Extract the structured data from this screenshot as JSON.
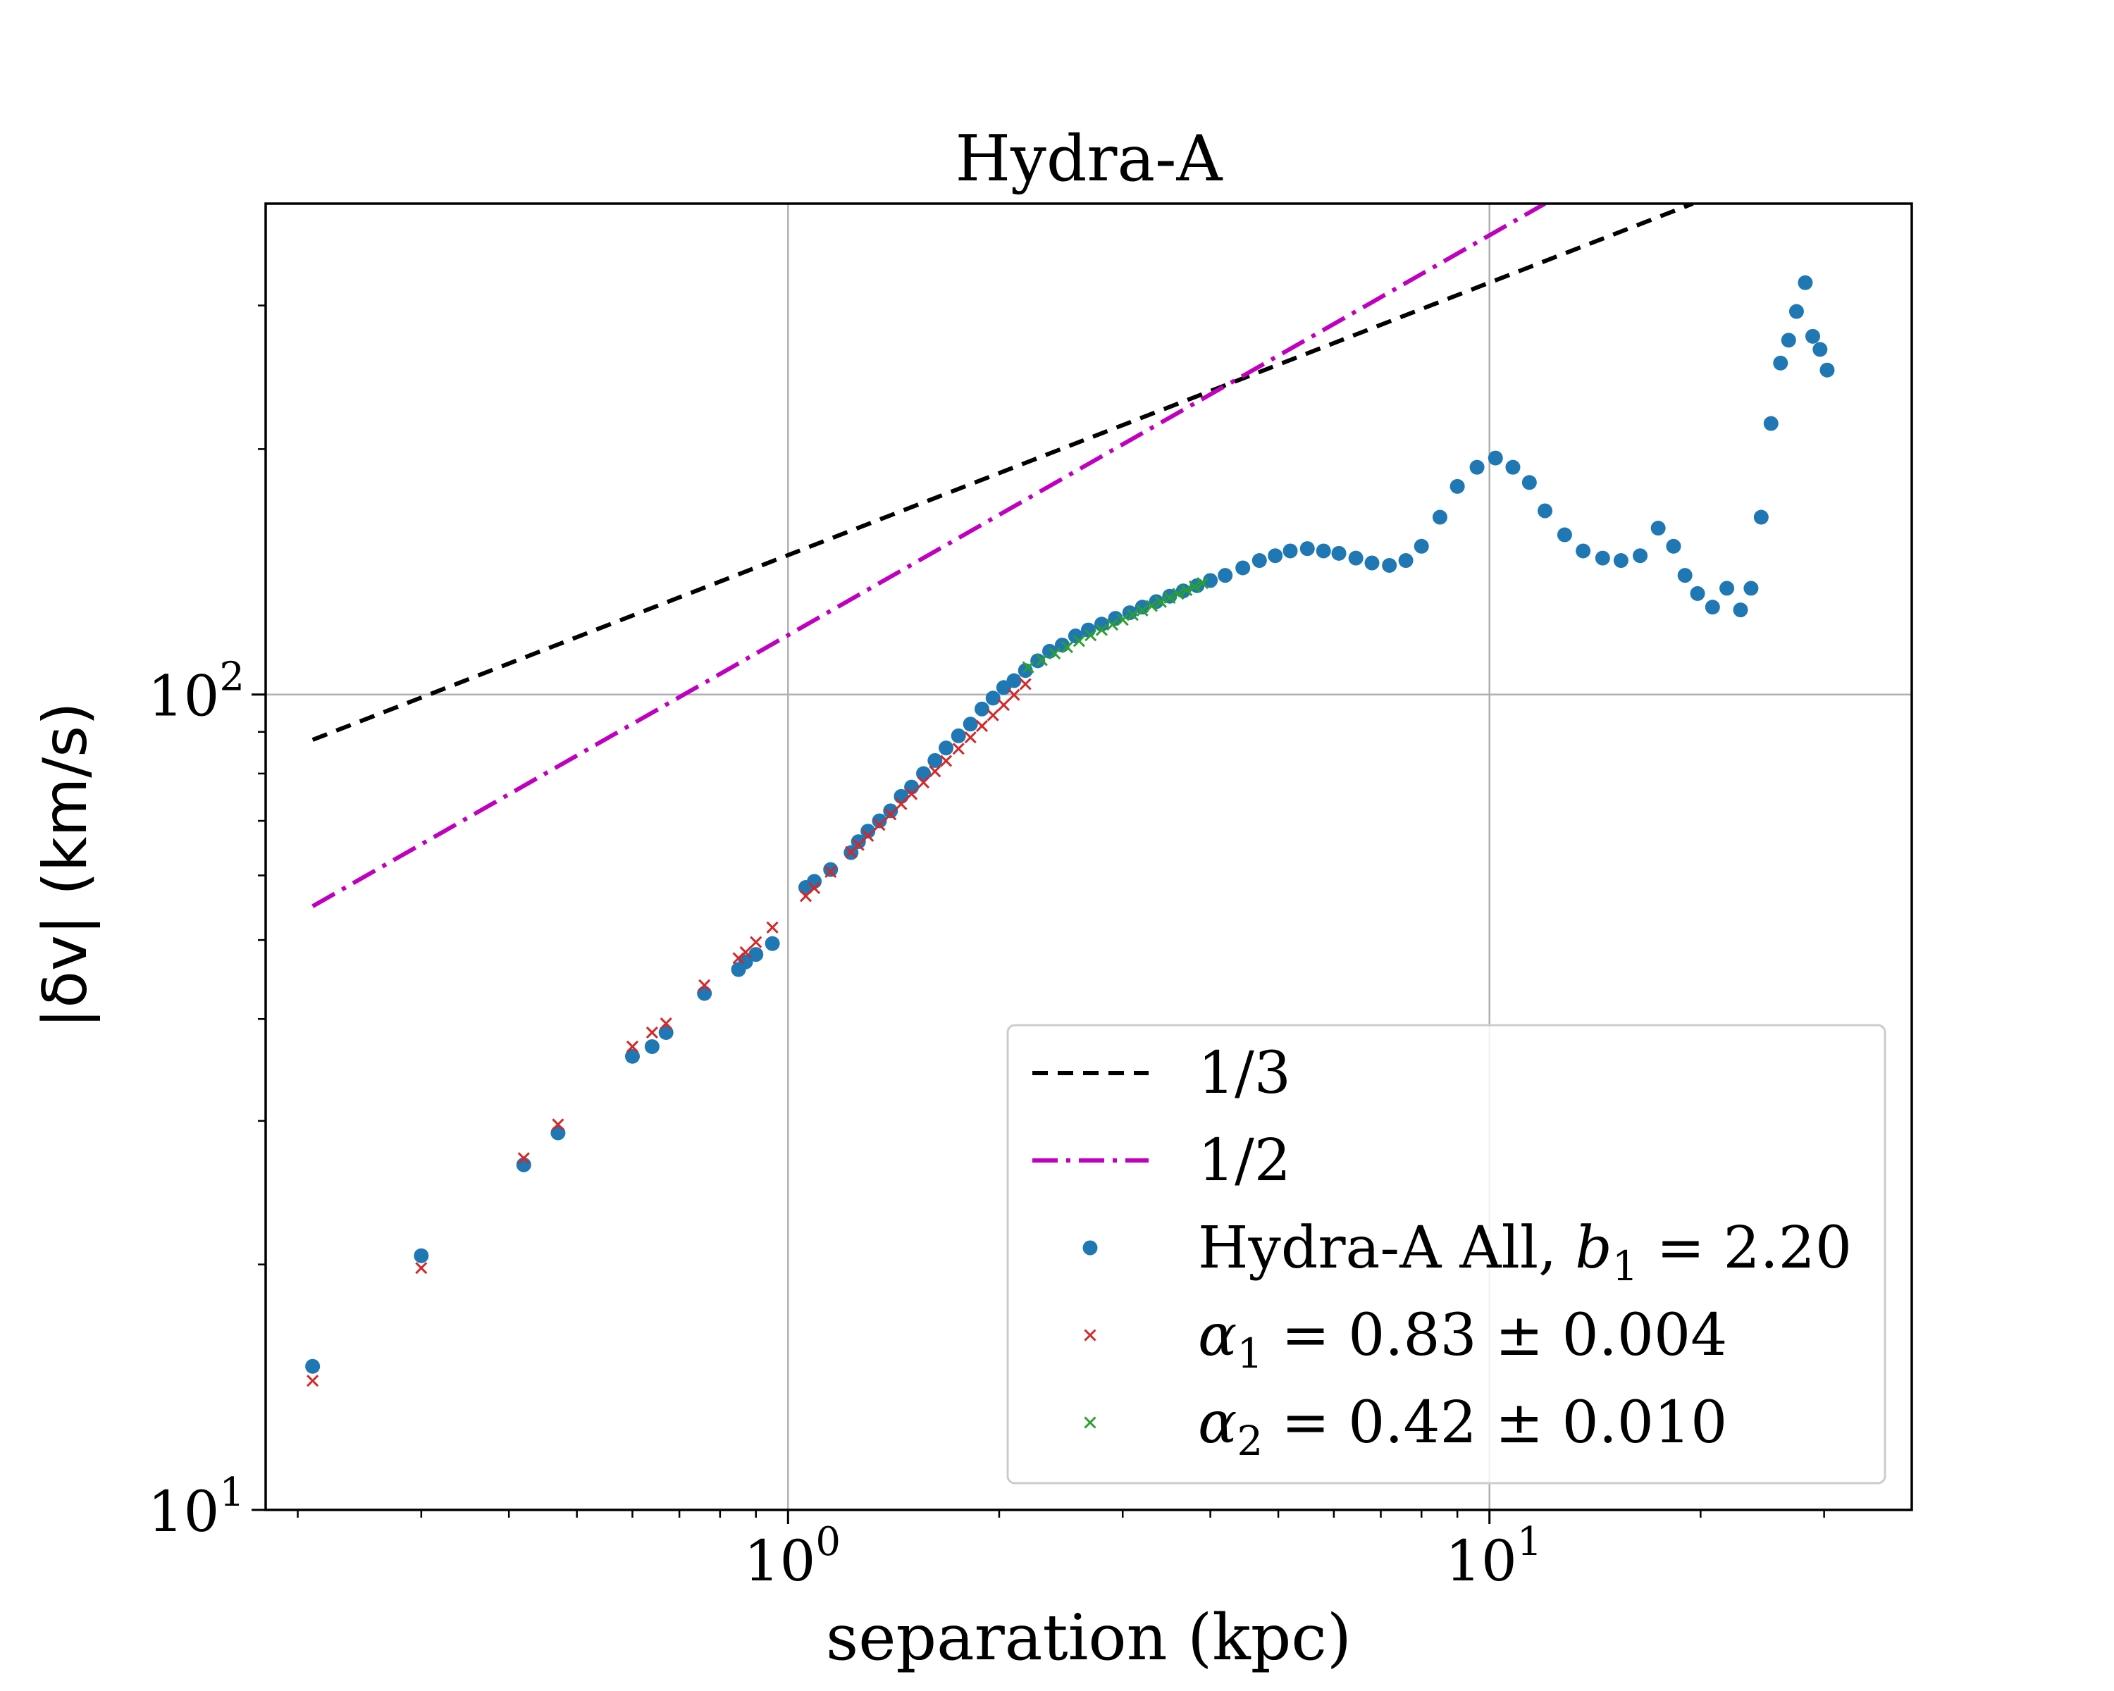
{
  "chart_data": {
    "type": "scatter",
    "title": "Hydra-A",
    "xlabel": "separation (kpc)",
    "ylabel": "|δv| (km/s)",
    "xscale": "log",
    "yscale": "log",
    "xlim": [
      0.18,
      40
    ],
    "ylim": [
      10,
      400
    ],
    "grid": true,
    "x_ticks": [
      {
        "value": 1,
        "base": "10",
        "exp": "0"
      },
      {
        "value": 10,
        "base": "10",
        "exp": "1"
      }
    ],
    "y_ticks": [
      {
        "value": 10,
        "base": "10",
        "exp": "1"
      },
      {
        "value": 100,
        "base": "10",
        "exp": "2"
      }
    ],
    "legend_position": "lower-right",
    "colors": {
      "all": "#1f77b4",
      "fit1": "#d62728",
      "fit2": "#2ca02c",
      "line13": "#000000",
      "line12": "#bf00bf",
      "grid": "#b0b0b0"
    },
    "legend": [
      {
        "kind": "dashed",
        "color": "#000000",
        "text": "1/3"
      },
      {
        "kind": "dashdot",
        "color": "#bf00bf",
        "text": "1/2"
      },
      {
        "kind": "dot",
        "color": "#1f77b4",
        "pre": "Hydra-A All, ",
        "sym": "b",
        "sub": "1",
        "post": " = 2.20"
      },
      {
        "kind": "cross",
        "color": "#d62728",
        "pre": "",
        "sym": "α",
        "sub": "1",
        "post": " = 0.83 ± 0.004"
      },
      {
        "kind": "cross",
        "color": "#2ca02c",
        "pre": "",
        "sym": "α",
        "sub": "2",
        "post": " = 0.42 ± 0.010"
      }
    ],
    "reference_lines": [
      {
        "name": "1/3",
        "slope": 0.3333,
        "x": [
          0.21,
          19.5
        ],
        "y": [
          88,
          400
        ]
      },
      {
        "name": "1/2",
        "slope": 0.5,
        "x": [
          0.21,
          12
        ],
        "y": [
          55,
          400
        ]
      }
    ],
    "series": [
      {
        "name": "Hydra-A All, b1 = 2.20",
        "marker": "dot",
        "x": [
          0.21,
          0.3,
          0.42,
          0.47,
          0.6,
          0.64,
          0.67,
          0.76,
          0.85,
          0.87,
          0.9,
          0.95,
          1.06,
          1.09,
          1.15,
          1.23,
          1.26,
          1.3,
          1.35,
          1.4,
          1.45,
          1.5,
          1.56,
          1.62,
          1.68,
          1.75,
          1.82,
          1.89,
          1.96,
          2.03,
          2.1,
          2.18,
          2.27,
          2.36,
          2.46,
          2.57,
          2.68,
          2.8,
          2.93,
          3.07,
          3.2,
          3.35,
          3.5,
          3.66,
          3.83,
          4.0,
          4.2,
          4.45,
          4.7,
          4.95,
          5.2,
          5.5,
          5.8,
          6.1,
          6.45,
          6.8,
          7.2,
          7.6,
          8.0,
          8.5,
          9.0,
          9.6,
          10.2,
          10.8,
          11.4,
          12.0,
          12.8,
          13.6,
          14.5,
          15.4,
          16.4,
          17.4,
          18.3,
          19.0,
          19.8,
          20.8,
          21.8,
          22.8,
          23.6,
          24.4,
          25.2,
          26.0,
          26.7,
          27.4,
          28.2,
          28.9,
          29.6,
          30.3
        ],
        "y": [
          15,
          20.5,
          26.5,
          29,
          36,
          37,
          38.5,
          43,
          46,
          47,
          48,
          49.5,
          58,
          59,
          61,
          64,
          66,
          68,
          70,
          72,
          75,
          77,
          80,
          83,
          86,
          89,
          92,
          96,
          99,
          102,
          104,
          107,
          110,
          113,
          115,
          118,
          120,
          122,
          124,
          126,
          128,
          130,
          132,
          134,
          136,
          138,
          140,
          143,
          146,
          148,
          150,
          151,
          150,
          149,
          147,
          145,
          144,
          146,
          152,
          165,
          180,
          190,
          195,
          190,
          182,
          168,
          157,
          150,
          147,
          146,
          148,
          160,
          152,
          140,
          133,
          128,
          135,
          127,
          135,
          165,
          215,
          255,
          272,
          295,
          320,
          275,
          265,
          250
        ]
      },
      {
        "name": "α1 = 0.83 ± 0.004",
        "marker": "cross",
        "x": [
          0.21,
          0.3,
          0.42,
          0.47,
          0.6,
          0.64,
          0.67,
          0.76,
          0.85,
          0.87,
          0.9,
          0.95,
          1.06,
          1.09,
          1.15,
          1.23,
          1.26,
          1.3,
          1.35,
          1.4,
          1.45,
          1.5,
          1.56,
          1.62,
          1.68,
          1.75,
          1.82,
          1.89,
          1.96,
          2.03,
          2.1,
          2.18
        ],
        "y": [
          14.4,
          19.8,
          27,
          29.7,
          37,
          38.5,
          39.5,
          44,
          47.5,
          48.3,
          49.7,
          51.8,
          56.6,
          57.9,
          60.6,
          64.1,
          65.4,
          67.1,
          69.2,
          71.3,
          73.4,
          75.5,
          78,
          80.5,
          82.9,
          85.8,
          88.6,
          91.5,
          94.3,
          97.1,
          99.9,
          103
        ]
      },
      {
        "name": "α2 = 0.42 ± 0.010",
        "marker": "cross",
        "x": [
          2.2,
          2.3,
          2.4,
          2.5,
          2.6,
          2.7,
          2.8,
          2.9,
          3.0,
          3.1,
          3.2,
          3.3,
          3.4,
          3.5,
          3.6,
          3.7,
          3.8,
          3.9
        ],
        "y": [
          108,
          110.2,
          112.3,
          114.3,
          116.3,
          118.2,
          120,
          121.8,
          123.5,
          125.2,
          126.8,
          128.4,
          129.9,
          131.4,
          132.9,
          134.3,
          135.7,
          137
        ]
      }
    ]
  }
}
